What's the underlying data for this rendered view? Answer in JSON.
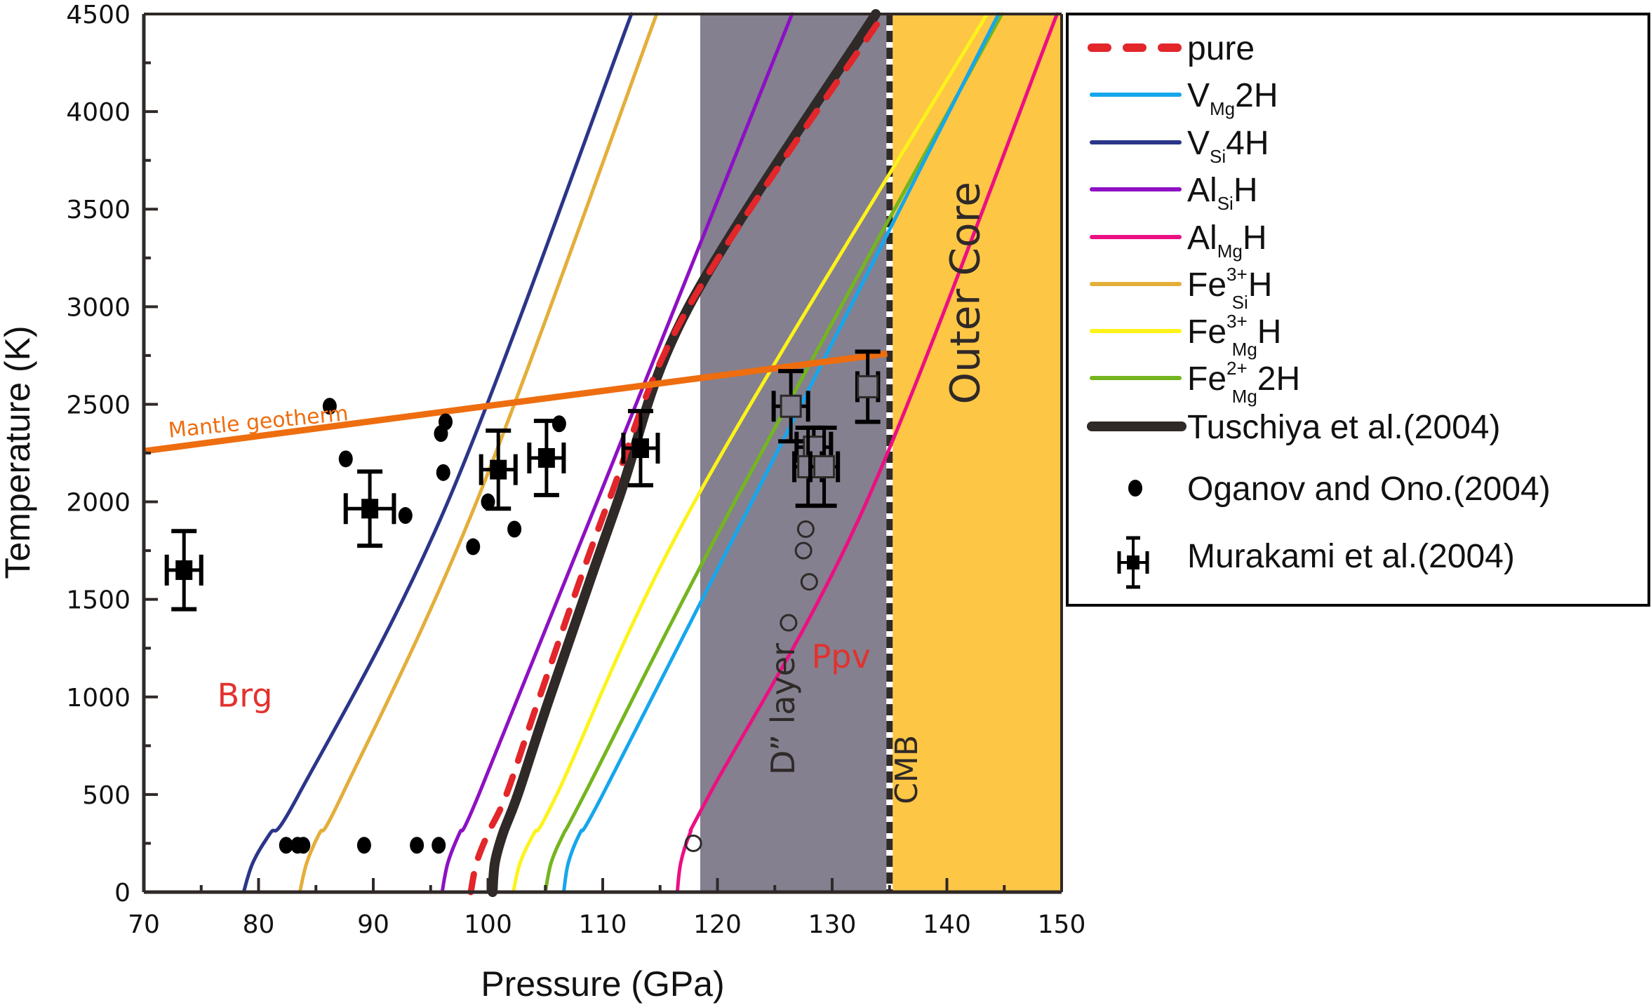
{
  "chart_data": {
    "type": "line",
    "title": "",
    "xlabel": "Pressure (GPa)",
    "ylabel": "Temperature (K)",
    "xlim": [
      70,
      150
    ],
    "ylim": [
      0,
      4500
    ],
    "xticks": [
      70,
      80,
      90,
      100,
      110,
      120,
      130,
      140,
      150
    ],
    "yticks": [
      0,
      500,
      1000,
      1500,
      2000,
      2500,
      3000,
      3500,
      4000,
      4500
    ],
    "grid": false,
    "legend_position": "right-outside",
    "regions": [
      {
        "name": "D” layer",
        "x_range": [
          118.5,
          134.8
        ],
        "color": "#84808f"
      },
      {
        "name": "Outer Core",
        "x_range": [
          135.2,
          150
        ],
        "color": "#fdc645"
      }
    ],
    "boundary": {
      "name": "CMB",
      "x": 135
    },
    "series": [
      {
        "id": "vsi4h",
        "name": "V_Si4H",
        "label_main": "V",
        "label_sub": "Si",
        "label_sup": "",
        "label_tail": "4H",
        "color": "#2b3589",
        "style": "solid",
        "points": [
          [
            78.7,
            0
          ],
          [
            79.5,
            150
          ],
          [
            81,
            300
          ],
          [
            83.5,
            500
          ],
          [
            96.5,
            2000
          ],
          [
            112.5,
            4500
          ]
        ]
      },
      {
        "id": "fe3sih",
        "name": "Fe3+_SiH",
        "label_main": "Fe",
        "label_sub": "Si",
        "label_sup": "3+",
        "label_tail": "H",
        "color": "#e3ae3a",
        "style": "solid",
        "points": [
          [
            83.6,
            0
          ],
          [
            84.2,
            150
          ],
          [
            85.3,
            300
          ],
          [
            87.3,
            500
          ],
          [
            99,
            2000
          ],
          [
            114.7,
            4500
          ]
        ]
      },
      {
        "id": "alsih",
        "name": "Al_SiH",
        "label_main": "Al",
        "label_sub": "Si",
        "label_sup": "",
        "label_tail": "H",
        "color": "#8d10c3",
        "style": "solid",
        "points": [
          [
            96,
            0
          ],
          [
            96.5,
            150
          ],
          [
            97.5,
            300
          ],
          [
            99.2,
            500
          ],
          [
            109.5,
            2000
          ],
          [
            126.5,
            4500
          ]
        ]
      },
      {
        "id": "pure",
        "name": "pure",
        "label_main": "pure",
        "label_sub": "",
        "label_sup": "",
        "label_tail": "",
        "color": "#e2262a",
        "style": "dashed",
        "points": [
          [
            98.5,
            0
          ],
          [
            99,
            150
          ],
          [
            100,
            300
          ],
          [
            101.6,
            500
          ],
          [
            104.5,
            1000
          ],
          [
            110.5,
            2000
          ],
          [
            117.5,
            3000
          ],
          [
            134.5,
            4500
          ]
        ]
      },
      {
        "id": "tuschiya",
        "name": "Tuschiya et al.(2004)",
        "label_main": "Tuschiya et al.(2004)",
        "label_sub": "",
        "label_sup": "",
        "label_tail": "",
        "color": "#2f2928",
        "style": "thick",
        "points": [
          [
            100.4,
            0
          ],
          [
            100.6,
            150
          ],
          [
            101.3,
            300
          ],
          [
            102.6,
            500
          ],
          [
            105.4,
            1000
          ],
          [
            111.3,
            2000
          ],
          [
            117.5,
            3000
          ],
          [
            133.8,
            4500
          ]
        ]
      },
      {
        "id": "fe3mgh",
        "name": "Fe3+_MgH",
        "label_main": "Fe",
        "label_sub": "Mg",
        "label_sup": "3+",
        "label_tail": "H",
        "color": "#fdf31a",
        "style": "solid",
        "points": [
          [
            102.2,
            0
          ],
          [
            102.8,
            150
          ],
          [
            104,
            300
          ],
          [
            106,
            500
          ],
          [
            118,
            2000
          ],
          [
            143.5,
            4500
          ]
        ]
      },
      {
        "id": "fe2mg2h",
        "name": "Fe2+_Mg2H",
        "label_main": "Fe",
        "label_sub": "Mg",
        "label_sup": "2+",
        "label_tail": "2H",
        "color": "#74b51f",
        "style": "solid",
        "points": [
          [
            105,
            0
          ],
          [
            105.5,
            150
          ],
          [
            106.6,
            300
          ],
          [
            108.4,
            500
          ],
          [
            121.5,
            2000
          ],
          [
            144.8,
            4500
          ]
        ]
      },
      {
        "id": "vmg2h",
        "name": "V_Mg2H",
        "label_main": "V",
        "label_sub": "Mg",
        "label_sup": "",
        "label_tail": "2H",
        "color": "#16a6ec",
        "style": "solid",
        "points": [
          [
            106.6,
            0
          ],
          [
            107,
            150
          ],
          [
            108,
            300
          ],
          [
            110,
            500
          ],
          [
            123,
            2000
          ],
          [
            144.5,
            4500
          ]
        ]
      },
      {
        "id": "almgh",
        "name": "Al_MgH",
        "label_main": "Al",
        "label_sub": "Mg",
        "label_sup": "",
        "label_tail": "H",
        "color": "#ec0f83",
        "style": "solid",
        "points": [
          [
            116.5,
            0
          ],
          [
            116.8,
            150
          ],
          [
            117.6,
            300
          ],
          [
            119.3,
            500
          ],
          [
            133,
            2000
          ],
          [
            149.6,
            4500
          ]
        ]
      }
    ],
    "geotherm": {
      "name": "Mantle geotherm",
      "color": "#ee6d0f",
      "points": [
        [
          70,
          2260
        ],
        [
          134.8,
          2760
        ]
      ]
    },
    "oganov_ono_2004": {
      "name": "Oganov and Ono.(2004)",
      "marker": "filled-circle",
      "points": [
        [
          86.2,
          2490
        ],
        [
          87.6,
          2220
        ],
        [
          95.9,
          2350
        ],
        [
          96.3,
          2410
        ],
        [
          96.1,
          2150
        ],
        [
          92.8,
          1930
        ],
        [
          98.7,
          1770
        ],
        [
          100,
          2000
        ],
        [
          102.3,
          1860
        ],
        [
          106.2,
          2400
        ],
        [
          82.4,
          240
        ],
        [
          83.4,
          240
        ],
        [
          83.9,
          240
        ],
        [
          89.2,
          240
        ],
        [
          93.8,
          240
        ],
        [
          95.7,
          240
        ]
      ],
      "open_points": [
        [
          117.9,
          250
        ],
        [
          126.2,
          1380
        ],
        [
          128,
          1590
        ],
        [
          127.5,
          1750
        ],
        [
          127.7,
          1860
        ]
      ]
    },
    "murakami_2004": {
      "name": "Murakami et al.(2004)",
      "marker": "filled-square-errorbar",
      "points": [
        {
          "x": 73.5,
          "y": 1650,
          "xerr": 1.5,
          "yerr": 200
        },
        {
          "x": 89.7,
          "y": 1965,
          "xerr": 2.1,
          "yerr": 190
        },
        {
          "x": 100.9,
          "y": 2165,
          "xerr": 1.5,
          "yerr": 200
        },
        {
          "x": 105.1,
          "y": 2225,
          "xerr": 1.5,
          "yerr": 190
        },
        {
          "x": 113.3,
          "y": 2275,
          "xerr": 1.5,
          "yerr": 190
        }
      ],
      "open_points": [
        {
          "x": 126.4,
          "y": 2490,
          "xerr": 1.5,
          "yerr": 180
        },
        {
          "x": 128.4,
          "y": 2280,
          "xerr": 1.5,
          "yerr": 100
        },
        {
          "x": 127.9,
          "y": 2180,
          "xerr": 1.2,
          "yerr": 200
        },
        {
          "x": 129.3,
          "y": 2180,
          "xerr": 1.2,
          "yerr": 200
        },
        {
          "x": 133.1,
          "y": 2590,
          "xerr": 0.9,
          "yerr": 180
        }
      ]
    },
    "annotations": [
      {
        "id": "brg",
        "text": "Brg",
        "x": 76.4,
        "y": 950,
        "color": "#e2322f",
        "rotate": 0
      },
      {
        "id": "ppv",
        "text": "Ppv",
        "x": 128.2,
        "y": 1150,
        "color": "#e2322f",
        "rotate": 0
      },
      {
        "id": "dlayer",
        "text": "D” layer",
        "x": 126.7,
        "y": 600,
        "color": "#2f2928",
        "rotate": -90
      },
      {
        "id": "cmb",
        "text": "CMB",
        "x": 137.4,
        "y": 450,
        "color": "#2f2928",
        "rotate": -90
      },
      {
        "id": "outercore",
        "text": "Outer Core",
        "x": 142.8,
        "y": 2500,
        "color": "#2f2928",
        "rotate": -90
      },
      {
        "id": "geotherm-label",
        "text": "Mantle geotherm",
        "x": 72.2,
        "y": 2330,
        "color": "#ee6d0f",
        "rotate": -5.5
      }
    ],
    "legend": [
      {
        "id": "pure",
        "kind": "dashed"
      },
      {
        "id": "vmg2h",
        "kind": "line"
      },
      {
        "id": "vsi4h",
        "kind": "line"
      },
      {
        "id": "alsih",
        "kind": "line"
      },
      {
        "id": "almgh",
        "kind": "line"
      },
      {
        "id": "fe3sih",
        "kind": "line"
      },
      {
        "id": "fe3mgh",
        "kind": "line"
      },
      {
        "id": "fe2mg2h",
        "kind": "line"
      },
      {
        "id": "tuschiya",
        "kind": "thick"
      },
      {
        "id": "oganov",
        "kind": "dot",
        "text": "Oganov and Ono.(2004)"
      },
      {
        "id": "murakami",
        "kind": "errorbar",
        "text": "Murakami et al.(2004)"
      }
    ]
  }
}
